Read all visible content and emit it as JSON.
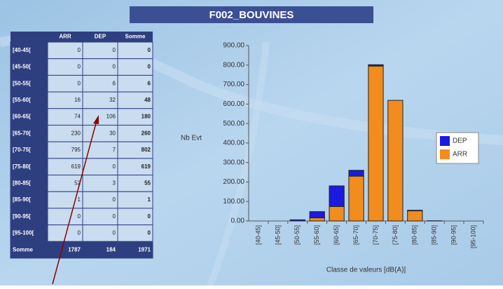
{
  "title": "F002_BOUVINES",
  "table": {
    "columns": [
      "ARR",
      "DEP",
      "Somme"
    ],
    "rows": [
      [
        "[40-45[",
        0,
        0,
        0
      ],
      [
        "[45-50[",
        0,
        0,
        0
      ],
      [
        "[50-55[",
        0,
        6,
        6
      ],
      [
        "[55-60[",
        16,
        32,
        48
      ],
      [
        "[60-65[",
        74,
        106,
        180
      ],
      [
        "[65-70[",
        230,
        30,
        260
      ],
      [
        "[70-75[",
        795,
        7,
        802
      ],
      [
        "[75-80[",
        619,
        0,
        619
      ],
      [
        "[80-85[",
        52,
        3,
        55
      ],
      [
        "[85-90[",
        1,
        0,
        1
      ],
      [
        "[90-95[",
        0,
        0,
        0
      ],
      [
        "[95-100[",
        0,
        0,
        0
      ],
      [
        "Somme",
        1787,
        184,
        1971
      ]
    ]
  },
  "chart_data": {
    "type": "stacked_bar",
    "y_label": "Nb Evt",
    "x_label": "Classe de valeurs [dB(A)]",
    "categories": [
      "[40-45]",
      "[45-50]",
      "[50-55]",
      "[55-60]",
      "[60-65]",
      "[65-70]",
      "[70-75]",
      "[75-80]",
      "[80-85]",
      "[85-90]",
      "[90-95]",
      "[95-100]"
    ],
    "series": [
      {
        "name": "ARR",
        "color": "#f28c1c",
        "values": [
          0,
          0,
          0,
          16,
          74,
          230,
          795,
          619,
          52,
          1,
          0,
          0
        ]
      },
      {
        "name": "DEP",
        "color": "#1a1ae0",
        "values": [
          0,
          0,
          6,
          32,
          106,
          30,
          7,
          0,
          3,
          0,
          0,
          0
        ]
      }
    ],
    "ylim": [
      0,
      900
    ],
    "yticks": [
      {
        "value": 0,
        "label": "0.00"
      },
      {
        "value": 100,
        "label": "100.00"
      },
      {
        "value": 200,
        "label": "200.00"
      },
      {
        "value": 300,
        "label": "300.00"
      },
      {
        "value": 400,
        "label": "400.00"
      },
      {
        "value": 500,
        "label": "500.00"
      },
      {
        "value": 600,
        "label": "600.00"
      },
      {
        "value": 700,
        "label": "700.00"
      },
      {
        "value": 800,
        "label": "800.00"
      },
      {
        "value": 900,
        "label": "900.00"
      }
    ],
    "legend": "right"
  }
}
